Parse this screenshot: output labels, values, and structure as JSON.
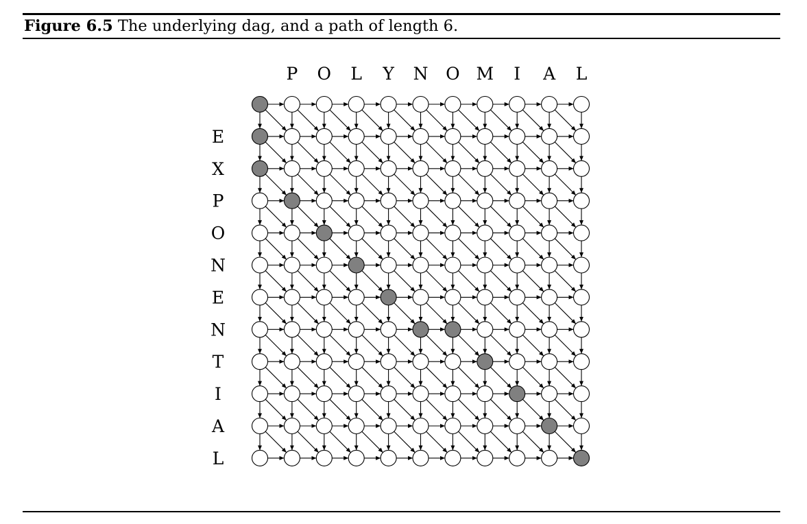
{
  "caption": {
    "label": "Figure 6.5",
    "text": " The underlying dag, and a path of length 6."
  },
  "diagram": {
    "column_letters": [
      "P",
      "O",
      "L",
      "Y",
      "N",
      "O",
      "M",
      "I",
      "A",
      "L"
    ],
    "row_letters": [
      "E",
      "X",
      "P",
      "O",
      "N",
      "E",
      "N",
      "T",
      "I",
      "A",
      "L"
    ],
    "path_nodes": [
      [
        0,
        0
      ],
      [
        1,
        0
      ],
      [
        2,
        0
      ],
      [
        3,
        1
      ],
      [
        4,
        2
      ],
      [
        5,
        3
      ],
      [
        6,
        4
      ],
      [
        7,
        5
      ],
      [
        7,
        6
      ],
      [
        8,
        7
      ],
      [
        9,
        8
      ],
      [
        10,
        9
      ],
      [
        11,
        10
      ]
    ],
    "colors": {
      "path_fill": "#808080",
      "node_fill": "#ffffff",
      "stroke": "#000000"
    }
  }
}
